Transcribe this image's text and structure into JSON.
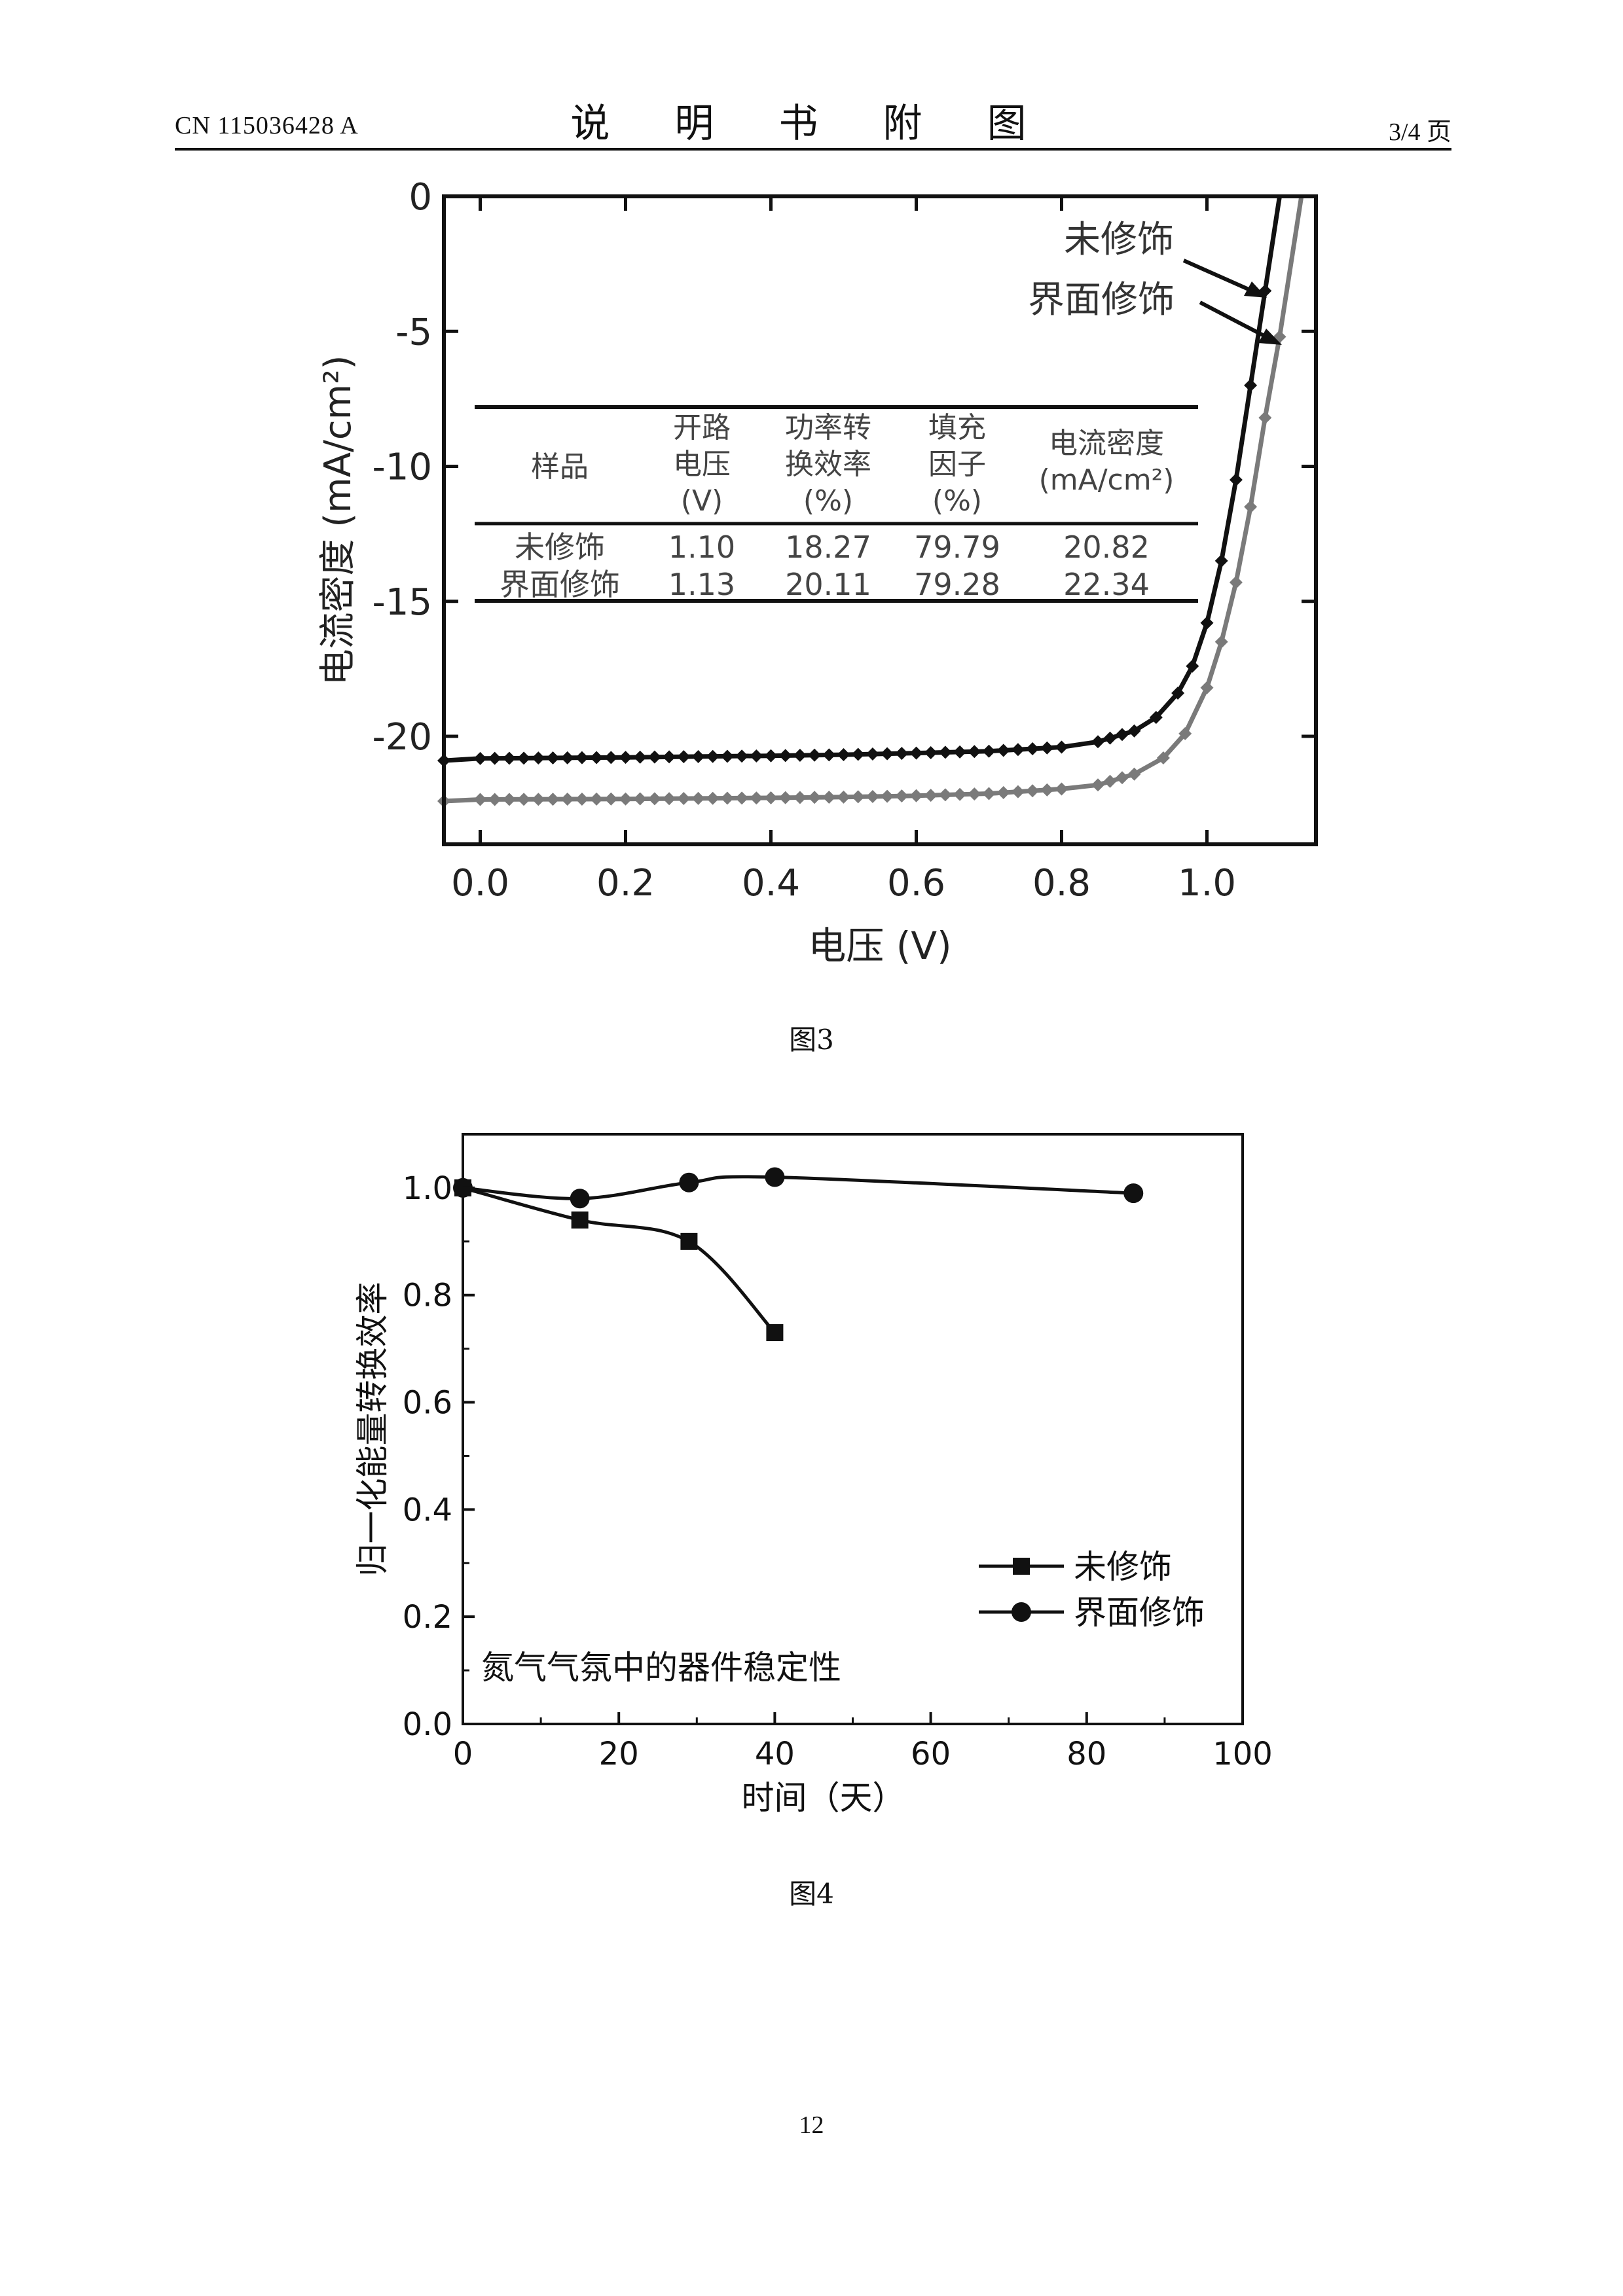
{
  "header": {
    "publication": "CN 115036428 A",
    "title": "说 明 书 附 图",
    "page_label": "3/4 页"
  },
  "figure3": {
    "caption": "图3",
    "inset_table": {
      "headers": [
        [
          "样品"
        ],
        [
          "开路",
          "电压",
          "(V)"
        ],
        [
          "功率转",
          "换效率",
          "(%)"
        ],
        [
          "填充",
          "因子",
          "(%)"
        ],
        [
          "电流密度",
          "(mA/cm²)"
        ]
      ],
      "rows": [
        [
          "未修饰",
          "1.10",
          "18.27",
          "79.79",
          "20.82"
        ],
        [
          "界面修饰",
          "1.13",
          "20.11",
          "79.28",
          "22.34"
        ]
      ]
    },
    "annotations": [
      "未修饰",
      "界面修饰"
    ]
  },
  "figure4": {
    "caption": "图4",
    "note": "氮气气氛中的器件稳定性"
  },
  "page_number": "12",
  "chart_data": [
    {
      "type": "line",
      "xlabel": "电压 (V)",
      "ylabel": "电流密度 (mA/cm²)",
      "xlim": [
        -0.05,
        1.15
      ],
      "ylim": [
        -24,
        0
      ],
      "xticks": [
        "0.0",
        "0.2",
        "0.4",
        "0.6",
        "0.8",
        "1.0"
      ],
      "xtick_values": [
        0,
        0.2,
        0.4,
        0.6,
        0.8,
        1.0
      ],
      "yticks": [
        "0",
        "-5",
        "-10",
        "-15",
        "-20"
      ],
      "ytick_values": [
        0,
        -5,
        -10,
        -15,
        -20
      ],
      "series": [
        {
          "name": "未修饰",
          "color": "#111111",
          "jsc": -20.82,
          "voc": 1.1,
          "x": [
            -0.05,
            0.0,
            0.1,
            0.2,
            0.3,
            0.4,
            0.5,
            0.6,
            0.7,
            0.8,
            0.85,
            0.9,
            0.93,
            0.96,
            0.98,
            1.0,
            1.02,
            1.04,
            1.06,
            1.08,
            1.1
          ],
          "y": [
            -20.9,
            -20.82,
            -20.8,
            -20.78,
            -20.75,
            -20.72,
            -20.68,
            -20.62,
            -20.55,
            -20.4,
            -20.2,
            -19.8,
            -19.3,
            -18.4,
            -17.4,
            -15.8,
            -13.5,
            -10.5,
            -7.0,
            -3.5,
            0.0
          ]
        },
        {
          "name": "界面修饰",
          "color": "#7a7a7a",
          "jsc": -22.34,
          "voc": 1.13,
          "x": [
            -0.05,
            0.0,
            0.1,
            0.2,
            0.3,
            0.4,
            0.5,
            0.6,
            0.7,
            0.8,
            0.85,
            0.9,
            0.94,
            0.97,
            1.0,
            1.02,
            1.04,
            1.06,
            1.08,
            1.1,
            1.13
          ],
          "y": [
            -22.4,
            -22.34,
            -22.33,
            -22.32,
            -22.3,
            -22.28,
            -22.25,
            -22.2,
            -22.12,
            -21.95,
            -21.8,
            -21.4,
            -20.8,
            -19.9,
            -18.2,
            -16.5,
            -14.3,
            -11.5,
            -8.2,
            -5.2,
            0.0
          ]
        }
      ]
    },
    {
      "type": "line",
      "xlabel": "时间（天）",
      "ylabel": "归一化能量转换效率",
      "xlim": [
        0,
        100
      ],
      "ylim": [
        0,
        1.1
      ],
      "xticks": [
        "0",
        "20",
        "40",
        "60",
        "80",
        "100"
      ],
      "xtick_values": [
        0,
        20,
        40,
        60,
        80,
        100
      ],
      "yticks": [
        "0.0",
        "0.2",
        "0.4",
        "0.6",
        "0.8",
        "1.0"
      ],
      "ytick_values": [
        0,
        0.2,
        0.4,
        0.6,
        0.8,
        1.0
      ],
      "legend_position": "bottom-right",
      "series": [
        {
          "name": "未修饰",
          "marker": "square",
          "x": [
            0,
            15,
            29,
            40
          ],
          "y": [
            1.0,
            0.94,
            0.9,
            0.73
          ]
        },
        {
          "name": "界面修饰",
          "marker": "circle",
          "x": [
            0,
            15,
            29,
            40,
            86
          ],
          "y": [
            1.0,
            0.98,
            1.01,
            1.02,
            0.99
          ]
        }
      ]
    }
  ]
}
